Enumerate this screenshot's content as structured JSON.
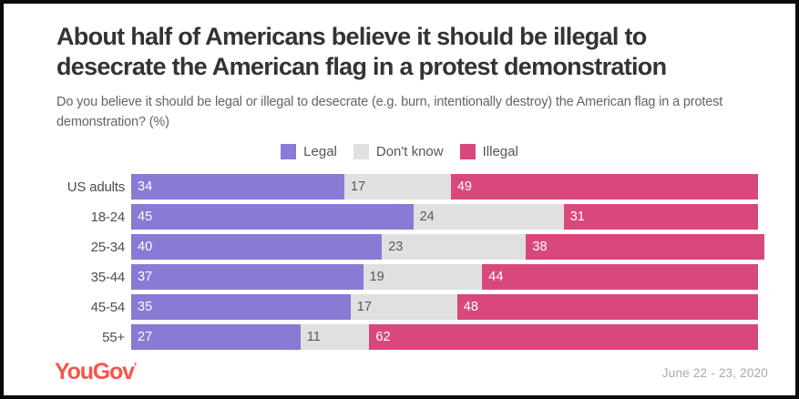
{
  "header": {
    "title": "About half of Americans believe it should be illegal to desecrate the American flag in a protest demonstration",
    "subtitle": "Do you believe it should be legal or illegal to desecrate (e.g. burn, intentionally destroy) the American flag in a protest demonstration? (%)"
  },
  "legend": [
    {
      "label": "Legal",
      "color": "#877bd5"
    },
    {
      "label": "Don't know",
      "color": "#e0e0e0"
    },
    {
      "label": "Illegal",
      "color": "#d8487c"
    }
  ],
  "chart_data": {
    "type": "bar",
    "orientation": "horizontal",
    "stacked": true,
    "title": "About half of Americans believe it should be illegal to desecrate the American flag in a protest demonstration",
    "subtitle": "Do you believe it should be legal or illegal to desecrate (e.g. burn, intentionally destroy) the American flag in a protest demonstration? (%)",
    "xlabel": "",
    "ylabel": "",
    "xlim": [
      0,
      100
    ],
    "grid": false,
    "legend_position": "top-center",
    "value_labels": "inside-start",
    "categories": [
      "US adults",
      "18-24",
      "25-34",
      "35-44",
      "45-54",
      "55+"
    ],
    "series": [
      {
        "name": "Legal",
        "color": "#877bd5",
        "text_color": "#ffffff",
        "values": [
          34,
          45,
          40,
          37,
          35,
          27
        ]
      },
      {
        "name": "Don't know",
        "color": "#e0e0e0",
        "text_color": "#595959",
        "values": [
          17,
          24,
          23,
          19,
          17,
          11
        ]
      },
      {
        "name": "Illegal",
        "color": "#d8487c",
        "text_color": "#ffffff",
        "values": [
          49,
          31,
          38,
          44,
          48,
          62
        ]
      }
    ]
  },
  "footer": {
    "logo": "YouGov",
    "logo_mark": "’",
    "logo_color": "#f4564a",
    "date": "June 22 - 23, 2020"
  }
}
